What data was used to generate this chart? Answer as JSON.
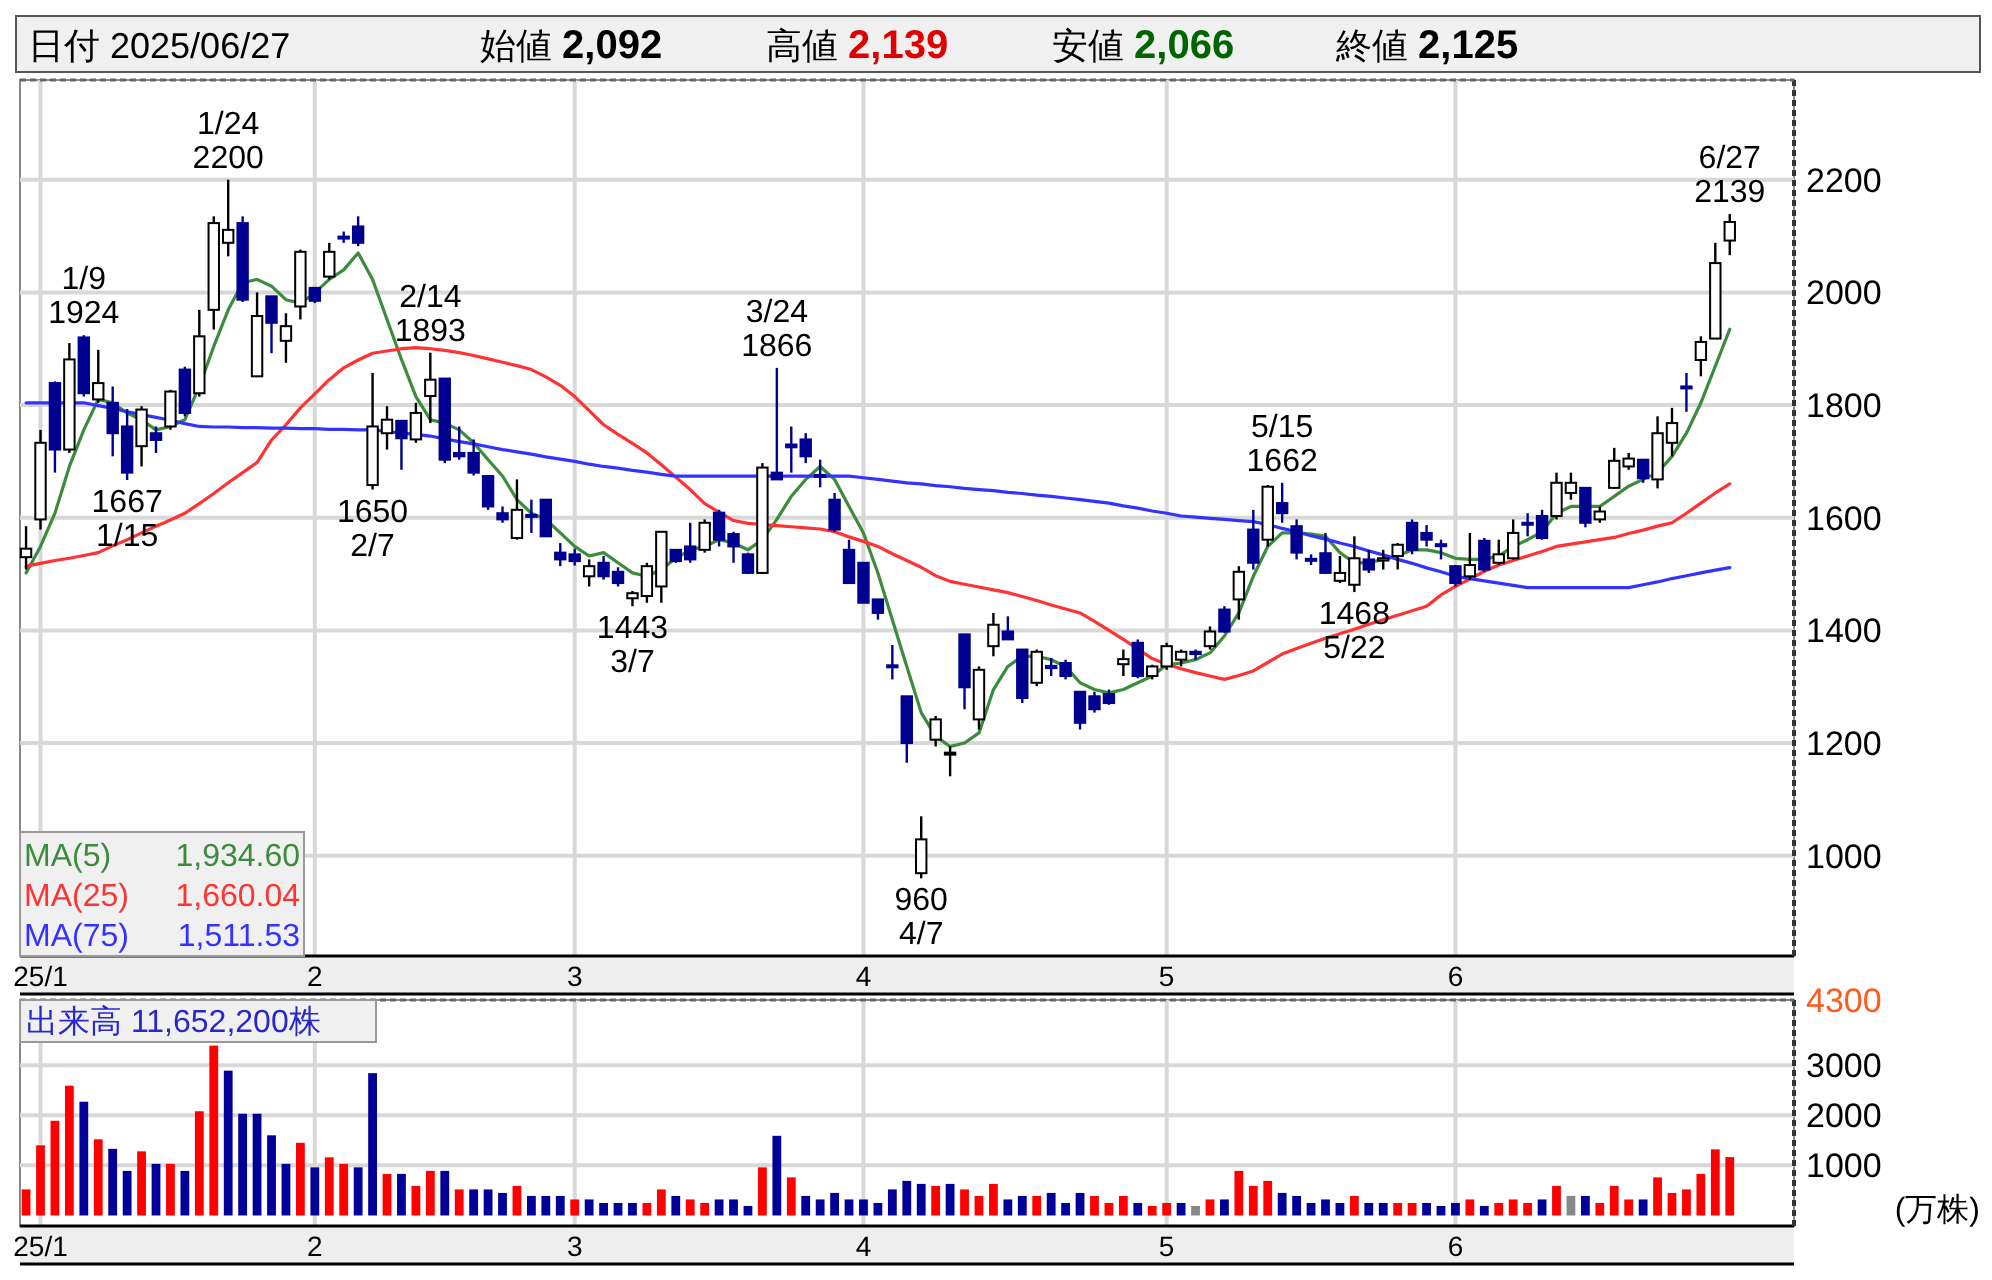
{
  "chart_data": [
    {
      "type": "candlestick",
      "categories": [
        null,
        "25/1",
        null,
        null,
        null,
        null,
        null,
        null,
        null,
        null,
        null,
        null,
        null,
        null,
        null,
        null,
        null,
        null,
        null,
        null,
        "2",
        null,
        null,
        null,
        null,
        null,
        null,
        null,
        null,
        null,
        null,
        null,
        null,
        null,
        null,
        null,
        null,
        null,
        "3",
        null,
        null,
        null,
        null,
        null,
        null,
        null,
        null,
        null,
        null,
        null,
        null,
        null,
        null,
        null,
        null,
        null,
        null,
        null,
        "4",
        null,
        null,
        null,
        null,
        null,
        null,
        null,
        null,
        null,
        null,
        null,
        null,
        null,
        null,
        null,
        null,
        null,
        null,
        null,
        null,
        "5",
        null,
        null,
        null,
        null,
        null,
        null,
        null,
        null,
        null,
        null,
        null,
        null,
        null,
        null,
        null,
        null,
        null,
        null,
        null,
        "6",
        null,
        null,
        null,
        null,
        null,
        null,
        null,
        null,
        null,
        null,
        null,
        null,
        null,
        null,
        null,
        null,
        null,
        null,
        null
      ],
      "ohlc": [
        [
          1530,
          1585,
          1508,
          1545
        ],
        [
          1597,
          1756,
          1579,
          1733
        ],
        [
          1839,
          1842,
          1680,
          1721
        ],
        [
          1721,
          1910,
          1715,
          1881
        ],
        [
          1920,
          1924,
          1815,
          1821
        ],
        [
          1810,
          1898,
          1804,
          1839
        ],
        [
          1804,
          1833,
          1709,
          1750
        ],
        [
          1762,
          1793,
          1667,
          1680
        ],
        [
          1727,
          1798,
          1691,
          1792
        ],
        [
          1750,
          1762,
          1715,
          1738
        ],
        [
          1762,
          1827,
          1756,
          1824
        ],
        [
          1863,
          1868,
          1780,
          1786
        ],
        [
          1821,
          1969,
          1815,
          1922
        ],
        [
          1969,
          2135,
          1934,
          2123
        ],
        [
          2088,
          2200,
          2064,
          2111
        ],
        [
          2123,
          2135,
          1983,
          1987
        ],
        [
          1851,
          2000,
          1851,
          1958
        ],
        [
          1993,
          1993,
          1892,
          1946
        ],
        [
          1914,
          1963,
          1875,
          1940
        ],
        [
          1975,
          2076,
          1952,
          2072
        ],
        [
          2008,
          2008,
          1981,
          1985
        ],
        [
          2028,
          2088,
          2023,
          2072
        ],
        [
          2099,
          2108,
          2088,
          2097
        ],
        [
          2117,
          2135,
          2082,
          2088
        ],
        [
          1658,
          1857,
          1650,
          1762
        ],
        [
          1750,
          1798,
          1721,
          1774
        ],
        [
          1772,
          1772,
          1685,
          1741
        ],
        [
          1739,
          1804,
          1733,
          1786
        ],
        [
          1816,
          1893,
          1768,
          1845
        ],
        [
          1847,
          1847,
          1697,
          1703
        ],
        [
          1715,
          1762,
          1703,
          1709
        ],
        [
          1715,
          1739,
          1675,
          1680
        ],
        [
          1674,
          1674,
          1614,
          1620
        ],
        [
          1608,
          1620,
          1591,
          1597
        ],
        [
          1564,
          1668,
          1561,
          1614
        ],
        [
          1605,
          1632,
          1573,
          1602
        ],
        [
          1632,
          1632,
          1567,
          1567
        ],
        [
          1538,
          1555,
          1514,
          1526
        ],
        [
          1535,
          1545,
          1515,
          1523
        ],
        [
          1496,
          1526,
          1478,
          1514
        ],
        [
          1520,
          1532,
          1490,
          1496
        ],
        [
          1504,
          1512,
          1478,
          1484
        ],
        [
          1457,
          1470,
          1443,
          1466
        ],
        [
          1461,
          1520,
          1449,
          1514
        ],
        [
          1478,
          1575,
          1449,
          1575
        ],
        [
          1543,
          1543,
          1520,
          1523
        ],
        [
          1549,
          1591,
          1520,
          1526
        ],
        [
          1543,
          1597,
          1538,
          1591
        ],
        [
          1609,
          1614,
          1549,
          1561
        ],
        [
          1571,
          1575,
          1520,
          1549
        ],
        [
          1535,
          1538,
          1500,
          1502
        ],
        [
          1502,
          1697,
          1500,
          1689
        ],
        [
          1680,
          1866,
          1668,
          1668
        ],
        [
          1730,
          1762,
          1680,
          1725
        ],
        [
          1739,
          1750,
          1697,
          1709
        ],
        [
          1676,
          1703,
          1654,
          1674
        ],
        [
          1632,
          1644,
          1575,
          1579
        ],
        [
          1543,
          1561,
          1484,
          1484
        ],
        [
          1520,
          1520,
          1449,
          1449
        ],
        [
          1455,
          1455,
          1419,
          1431
        ],
        [
          1338,
          1374,
          1313,
          1335
        ],
        [
          1283,
          1283,
          1165,
          1200
        ],
        [
          969,
          1070,
          960,
          1029
        ],
        [
          1206,
          1248,
          1194,
          1242
        ],
        [
          1182,
          1194,
          1141,
          1183
        ],
        [
          1393,
          1393,
          1260,
          1299
        ],
        [
          1242,
          1336,
          1224,
          1330
        ],
        [
          1372,
          1431,
          1354,
          1410
        ],
        [
          1398,
          1425,
          1384,
          1384
        ],
        [
          1366,
          1366,
          1271,
          1280
        ],
        [
          1307,
          1366,
          1301,
          1362
        ],
        [
          1337,
          1351,
          1319,
          1333
        ],
        [
          1342,
          1348,
          1313,
          1319
        ],
        [
          1291,
          1291,
          1224,
          1236
        ],
        [
          1283,
          1291,
          1254,
          1260
        ],
        [
          1287,
          1295,
          1268,
          1271
        ],
        [
          1340,
          1366,
          1319,
          1349
        ],
        [
          1378,
          1384,
          1315,
          1319
        ],
        [
          1319,
          1339,
          1313,
          1336
        ],
        [
          1336,
          1378,
          1330,
          1372
        ],
        [
          1348,
          1366,
          1336,
          1362
        ],
        [
          1362,
          1366,
          1348,
          1358
        ],
        [
          1372,
          1407,
          1366,
          1398
        ],
        [
          1437,
          1443,
          1396,
          1398
        ],
        [
          1455,
          1514,
          1419,
          1504
        ],
        [
          1579,
          1614,
          1508,
          1520
        ],
        [
          1561,
          1658,
          1549,
          1655
        ],
        [
          1626,
          1662,
          1591,
          1608
        ],
        [
          1585,
          1597,
          1526,
          1538
        ],
        [
          1527,
          1535,
          1516,
          1525
        ],
        [
          1537,
          1573,
          1500,
          1502
        ],
        [
          1488,
          1532,
          1484,
          1502
        ],
        [
          1481,
          1567,
          1468,
          1528
        ],
        [
          1526,
          1543,
          1502,
          1508
        ],
        [
          1524,
          1543,
          1508,
          1528
        ],
        [
          1532,
          1555,
          1508,
          1552
        ],
        [
          1591,
          1597,
          1535,
          1543
        ],
        [
          1573,
          1587,
          1549,
          1561
        ],
        [
          1553,
          1561,
          1526,
          1550
        ],
        [
          1514,
          1516,
          1478,
          1484
        ],
        [
          1496,
          1573,
          1490,
          1516
        ],
        [
          1559,
          1564,
          1504,
          1508
        ],
        [
          1520,
          1561,
          1516,
          1535
        ],
        [
          1528,
          1597,
          1526,
          1573
        ],
        [
          1591,
          1608,
          1567,
          1589
        ],
        [
          1603,
          1614,
          1561,
          1564
        ],
        [
          1603,
          1680,
          1597,
          1662
        ],
        [
          1644,
          1680,
          1632,
          1662
        ],
        [
          1653,
          1653,
          1583,
          1591
        ],
        [
          1597,
          1620,
          1591,
          1611
        ],
        [
          1653,
          1724,
          1651,
          1701
        ],
        [
          1691,
          1715,
          1685,
          1705
        ],
        [
          1703,
          1703,
          1662,
          1670
        ],
        [
          1668,
          1780,
          1652,
          1750
        ],
        [
          1733,
          1795,
          1709,
          1768
        ],
        [
          1833,
          1857,
          1788,
          1830
        ],
        [
          1880,
          1922,
          1851,
          1912
        ],
        [
          1918,
          2088,
          1918,
          2052
        ],
        [
          2092,
          2139,
          2066,
          2125
        ]
      ],
      "series": [
        {
          "type": "line",
          "name": "MA(5)",
          "color": "#3c8c3c",
          "values": [
            1502,
            1549,
            1608,
            1691,
            1756,
            1810,
            1804,
            1786,
            1774,
            1756,
            1762,
            1774,
            1833,
            1904,
            1969,
            2017,
            2023,
            2011,
            1987,
            1981,
            1999,
            2023,
            2040,
            2070,
            2023,
            1952,
            1881,
            1815,
            1774,
            1768,
            1756,
            1733,
            1703,
            1674,
            1632,
            1608,
            1597,
            1573,
            1549,
            1532,
            1538,
            1520,
            1502,
            1496,
            1508,
            1528,
            1543,
            1549,
            1561,
            1555,
            1543,
            1561,
            1597,
            1638,
            1668,
            1691,
            1668,
            1620,
            1573,
            1502,
            1419,
            1336,
            1254,
            1212,
            1194,
            1200,
            1218,
            1295,
            1336,
            1354,
            1354,
            1348,
            1336,
            1307,
            1295,
            1289,
            1295,
            1307,
            1319,
            1339,
            1342,
            1348,
            1360,
            1390,
            1431,
            1496,
            1549,
            1573,
            1573,
            1571,
            1567,
            1538,
            1520,
            1520,
            1526,
            1532,
            1543,
            1543,
            1538,
            1528,
            1526,
            1526,
            1532,
            1549,
            1561,
            1575,
            1608,
            1620,
            1620,
            1620,
            1638,
            1656,
            1668,
            1680,
            1709,
            1750,
            1804,
            1869,
            1934.6
          ]
        },
        {
          "type": "line",
          "name": "MA(25)",
          "color": "#ff3333",
          "values": [
            1514,
            1519,
            1524,
            1528,
            1533,
            1538,
            1550,
            1561,
            1573,
            1585,
            1596,
            1608,
            1625,
            1643,
            1662,
            1680,
            1698,
            1738,
            1765,
            1795,
            1820,
            1845,
            1866,
            1880,
            1892,
            1896,
            1900,
            1902,
            1900,
            1897,
            1893,
            1888,
            1882,
            1876,
            1870,
            1863,
            1850,
            1835,
            1815,
            1790,
            1765,
            1748,
            1732,
            1715,
            1694,
            1672,
            1650,
            1625,
            1610,
            1595,
            1590,
            1588,
            1586,
            1584,
            1582,
            1580,
            1575,
            1566,
            1558,
            1549,
            1536,
            1524,
            1512,
            1497,
            1487,
            1482,
            1477,
            1472,
            1467,
            1460,
            1453,
            1445,
            1438,
            1431,
            1416,
            1400,
            1384,
            1367,
            1350,
            1340,
            1332,
            1325,
            1319,
            1313,
            1320,
            1328,
            1343,
            1358,
            1368,
            1377,
            1386,
            1394,
            1402,
            1411,
            1419,
            1427,
            1435,
            1443,
            1463,
            1478,
            1491,
            1505,
            1516,
            1524,
            1532,
            1540,
            1549,
            1553,
            1557,
            1561,
            1565,
            1572,
            1578,
            1585,
            1591,
            1608,
            1626,
            1644,
            1660.04
          ]
        },
        {
          "type": "line",
          "name": "MA(75)",
          "color": "#3333ff",
          "values": [
            1804,
            1804,
            1804,
            1804,
            1804,
            1799,
            1794,
            1788,
            1783,
            1778,
            1773,
            1767,
            1762,
            1761,
            1761,
            1760,
            1760,
            1759,
            1759,
            1758,
            1758,
            1757,
            1757,
            1756,
            1756,
            1753,
            1750,
            1748,
            1745,
            1740,
            1735,
            1731,
            1726,
            1721,
            1717,
            1713,
            1708,
            1704,
            1700,
            1695,
            1691,
            1688,
            1684,
            1681,
            1677,
            1674,
            1674,
            1674,
            1674,
            1674,
            1674,
            1674,
            1674,
            1674,
            1674,
            1674,
            1674,
            1674,
            1671,
            1668,
            1665,
            1662,
            1660,
            1657,
            1655,
            1652,
            1650,
            1648,
            1645,
            1643,
            1640,
            1638,
            1635,
            1632,
            1629,
            1626,
            1621,
            1617,
            1612,
            1608,
            1603,
            1601,
            1599,
            1597,
            1595,
            1593,
            1588,
            1581,
            1575,
            1568,
            1562,
            1555,
            1549,
            1541,
            1534,
            1526,
            1519,
            1511,
            1504,
            1496,
            1492,
            1488,
            1484,
            1480,
            1476,
            1476,
            1476,
            1476,
            1476,
            1476,
            1476,
            1476,
            1481,
            1486,
            1492,
            1497,
            1502,
            1507,
            1511.53
          ]
        }
      ],
      "ylim": [
        822,
        2377
      ],
      "yticks": [
        1000,
        1200,
        1400,
        1600,
        1800,
        2000,
        2200
      ],
      "grid": true,
      "legend": "bottom left",
      "annotations": [
        "日付 2025/06/27",
        "始値 2,092",
        "高値 2,139",
        "安値 2,066",
        "終値 2,125",
        "1,934.60",
        "1,660.04",
        "1,511.53",
        {
          "text": "1/9\n1924",
          "y": 1924
        },
        {
          "text": "1667\n1/15",
          "y": 1667
        },
        {
          "text": "1/24\n2200",
          "y": 2200
        },
        {
          "text": "1650\n2/7",
          "y": 1650
        },
        {
          "text": "2/14\n1893",
          "y": 1893
        },
        {
          "text": "1443\n3/7",
          "y": 1443
        },
        {
          "text": "3/24\n1866",
          "y": 1866
        },
        {
          "text": "960\n4/7",
          "y": 960
        },
        {
          "text": "5/15\n1662",
          "y": 1662
        },
        {
          "text": "1468\n5/22",
          "y": 1468
        },
        {
          "text": "6/27\n2139",
          "y": 2139
        }
      ]
    },
    {
      "type": "bar",
      "categories": [
        null,
        "25/1",
        null,
        null,
        null,
        null,
        null,
        null,
        null,
        null,
        null,
        null,
        null,
        null,
        null,
        null,
        null,
        null,
        null,
        null,
        "2",
        null,
        null,
        null,
        null,
        null,
        null,
        null,
        null,
        null,
        null,
        null,
        null,
        null,
        null,
        null,
        null,
        null,
        "3",
        null,
        null,
        null,
        null,
        null,
        null,
        null,
        null,
        null,
        null,
        null,
        null,
        null,
        null,
        null,
        null,
        null,
        null,
        null,
        "4",
        null,
        null,
        null,
        null,
        null,
        null,
        null,
        null,
        null,
        null,
        null,
        null,
        null,
        null,
        null,
        null,
        null,
        null,
        null,
        null,
        "5",
        null,
        null,
        null,
        null,
        null,
        null,
        null,
        null,
        null,
        null,
        null,
        null,
        null,
        null,
        null,
        null,
        null,
        null,
        null,
        "6",
        null,
        null,
        null,
        null,
        null,
        null,
        null,
        null,
        null,
        null,
        null,
        null,
        null,
        null,
        null,
        null,
        null,
        null,
        null
      ],
      "values": [
        520,
        1400,
        1890,
        2590,
        2270,
        1520,
        1330,
        890,
        1280,
        1030,
        1030,
        890,
        2080,
        3390,
        2890,
        2030,
        2030,
        1600,
        1030,
        1450,
        960,
        1160,
        1030,
        960,
        2840,
        830,
        830,
        590,
        890,
        890,
        520,
        520,
        520,
        450,
        590,
        390,
        390,
        390,
        320,
        320,
        250,
        250,
        250,
        250,
        520,
        390,
        320,
        250,
        320,
        320,
        190,
        960,
        1590,
        760,
        390,
        320,
        450,
        320,
        320,
        250,
        520,
        690,
        630,
        590,
        630,
        520,
        390,
        630,
        320,
        390,
        390,
        450,
        250,
        450,
        390,
        250,
        390,
        250,
        190,
        250,
        250,
        190,
        320,
        320,
        890,
        590,
        690,
        450,
        390,
        250,
        320,
        250,
        390,
        250,
        250,
        250,
        250,
        250,
        190,
        250,
        320,
        190,
        250,
        320,
        250,
        320,
        590,
        390,
        390,
        250,
        590,
        320,
        320,
        760,
        450,
        520,
        830,
        1320,
        1165
      ],
      "colors": [
        "#ff0000",
        "#ff0000",
        "#ff0000",
        "#ff0000",
        "#000099",
        "#ff0000",
        "#000099",
        "#000099",
        "#ff0000",
        "#000099",
        "#ff0000",
        "#000099",
        "#ff0000",
        "#ff0000",
        "#000099",
        "#000099",
        "#000099",
        "#000099",
        "#000099",
        "#ff0000",
        "#000099",
        "#ff0000",
        "#ff0000",
        "#000099",
        "#000099",
        "#ff0000",
        "#000099",
        "#ff0000",
        "#ff0000",
        "#000099",
        "#ff0000",
        "#000099",
        "#000099",
        "#000099",
        "#ff0000",
        "#000099",
        "#000099",
        "#000099",
        "#ff0000",
        "#000099",
        "#000099",
        "#000099",
        "#000099",
        "#ff0000",
        "#ff0000",
        "#000099",
        "#ff0000",
        "#ff0000",
        "#000099",
        "#000099",
        "#000099",
        "#ff0000",
        "#000099",
        "#ff0000",
        "#000099",
        "#000099",
        "#000099",
        "#000099",
        "#000099",
        "#000099",
        "#000099",
        "#000099",
        "#000099",
        "#ff0000",
        "#000099",
        "#ff0000",
        "#ff0000",
        "#ff0000",
        "#000099",
        "#000099",
        "#ff0000",
        "#000099",
        "#000099",
        "#000099",
        "#ff0000",
        "#ff0000",
        "#ff0000",
        "#000099",
        "#ff0000",
        "#ff0000",
        "#000099",
        "#888888",
        "#ff0000",
        "#000099",
        "#ff0000",
        "#ff0000",
        "#ff0000",
        "#000099",
        "#000099",
        "#000099",
        "#000099",
        "#000099",
        "#ff0000",
        "#000099",
        "#000099",
        "#ff0000",
        "#ff0000",
        "#000099",
        "#000099",
        "#000099",
        "#ff0000",
        "#000099",
        "#ff0000",
        "#ff0000",
        "#ff0000",
        "#000099",
        "#ff0000",
        "#888888",
        "#000099",
        "#ff0000",
        "#ff0000",
        "#ff0000",
        "#000099",
        "#ff0000",
        "#ff0000",
        "#ff0000",
        "#ff0000",
        "#ff0000",
        "#ff0000"
      ],
      "ylim": [
        -210,
        4300
      ],
      "yticks": [
        1000,
        2000,
        3000,
        4300
      ],
      "grid": true,
      "ylabel": "(万株)",
      "annotations": [
        "出来高 11,652,200株"
      ]
    }
  ]
}
